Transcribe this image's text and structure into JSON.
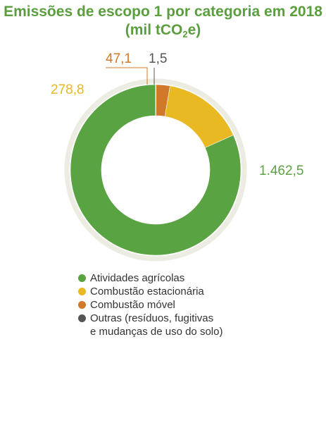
{
  "title": {
    "line1": "Emissões de escopo 1 por categoria em 2018",
    "line2_prefix": "(mil tCO",
    "line2_sub": "2",
    "line2_suffix": "e)"
  },
  "chart_data": {
    "type": "pie",
    "variant": "donut",
    "title": "Emissões de escopo 1 por categoria em 2018 (mil tCO2e)",
    "categories": [
      "Atividades agrícolas",
      "Combustão estacionária",
      "Combustão móvel",
      "Outras (resíduos, fugitivas e mudanças de uso do solo)"
    ],
    "values": [
      1462.5,
      278.8,
      47.1,
      1.5
    ],
    "value_labels": [
      "1.462,5",
      "278,8",
      "47,1",
      "1,5"
    ],
    "colors": [
      "#5aa342",
      "#e8b923",
      "#d2782a",
      "#555555"
    ],
    "legend_placement": "bottom"
  },
  "legend": [
    {
      "label": "Atividades agrícolas",
      "color": "#5aa342"
    },
    {
      "label": "Combustão estacionária",
      "color": "#e8b923"
    },
    {
      "label": "Combustão móvel",
      "color": "#d2782a"
    },
    {
      "label": "Outras (resíduos, fugitivas",
      "label_line2": "e mudanças de uso do solo)",
      "color": "#555555"
    }
  ]
}
